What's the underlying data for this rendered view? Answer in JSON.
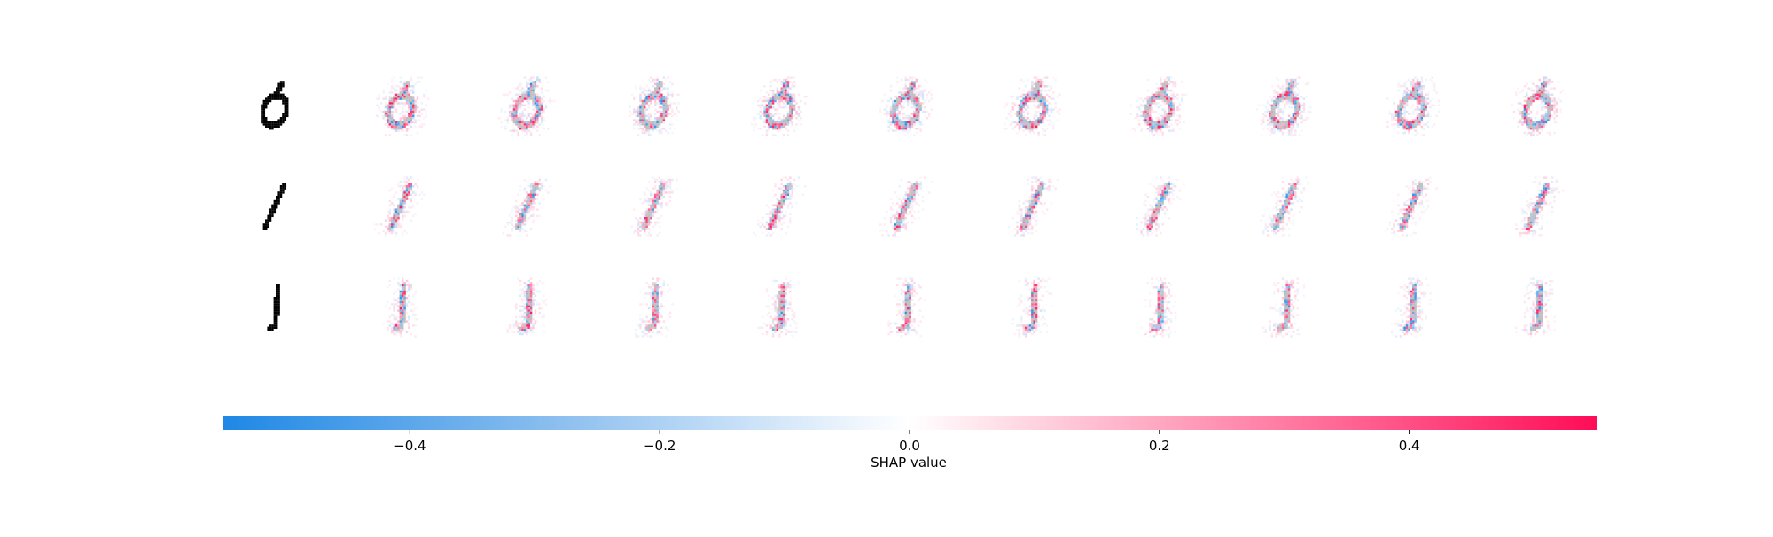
{
  "chart_data": {
    "type": "heatmap",
    "title": "",
    "rows": [
      {
        "input_digit": "0",
        "digit_shape": "zero"
      },
      {
        "input_digit": "1",
        "digit_shape": "one"
      },
      {
        "input_digit": "1",
        "digit_shape": "one-vertical"
      }
    ],
    "explanation_columns": 10,
    "colorbar": {
      "label": "SHAP value",
      "range": [
        -0.55,
        0.55
      ],
      "ticks": [
        {
          "value": -0.4,
          "label": "−0.4"
        },
        {
          "value": -0.2,
          "label": "−0.2"
        },
        {
          "value": 0.0,
          "label": "0.0"
        },
        {
          "value": 0.2,
          "label": "0.2"
        },
        {
          "value": 0.4,
          "label": "0.4"
        }
      ],
      "colors": {
        "negative": "#1e88e5",
        "zero": "#ffffff",
        "positive": "#ff0d57"
      }
    }
  }
}
